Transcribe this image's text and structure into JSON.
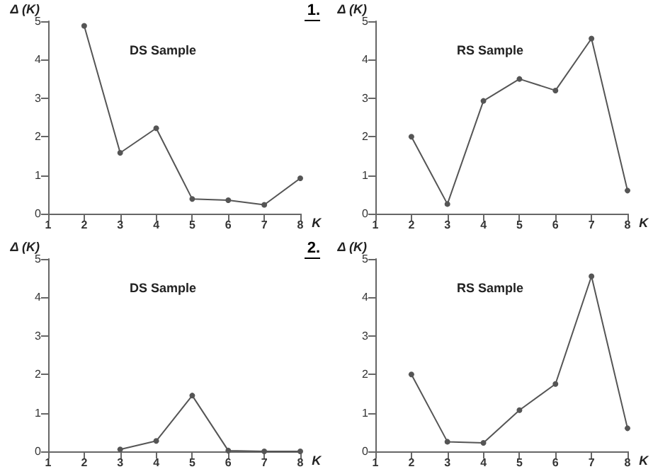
{
  "chart_data": [
    {
      "type": "line",
      "title": "DS Sample",
      "xlabel": "K",
      "ylabel": "Δ (K)",
      "annotations": [
        "1."
      ],
      "x": [
        2,
        3,
        4,
        5,
        6,
        7,
        8
      ],
      "values": [
        4.88,
        1.58,
        2.22,
        0.38,
        0.35,
        0.23,
        0.92
      ],
      "color": "#555555",
      "xlim": [
        1,
        8
      ],
      "xticks": [
        1,
        2,
        3,
        4,
        5,
        6,
        7,
        8
      ],
      "ylim": [
        0,
        5
      ],
      "yticks": [
        0,
        1,
        2,
        3,
        4,
        5
      ],
      "grid": false,
      "marker": "circle"
    },
    {
      "type": "line",
      "title": "RS Sample",
      "xlabel": "K",
      "ylabel": "Δ (K)",
      "x": [
        2,
        3,
        4,
        5,
        6,
        7,
        8
      ],
      "values": [
        2.0,
        0.25,
        2.93,
        3.5,
        3.2,
        4.55,
        0.6
      ],
      "color": "#555555",
      "xlim": [
        1,
        8
      ],
      "xticks": [
        1,
        2,
        3,
        4,
        5,
        6,
        7,
        8
      ],
      "ylim": [
        0,
        5
      ],
      "yticks": [
        0,
        1,
        2,
        3,
        4,
        5
      ],
      "grid": false,
      "marker": "circle"
    },
    {
      "type": "line",
      "title": "DS Sample",
      "xlabel": "K",
      "ylabel": "Δ (K)",
      "annotations": [
        "2."
      ],
      "x": [
        3,
        4,
        5,
        6,
        7,
        8
      ],
      "values": [
        0.05,
        0.27,
        1.45,
        0.02,
        0.0,
        0.0
      ],
      "color": "#555555",
      "xlim": [
        1,
        8
      ],
      "xticks": [
        1,
        2,
        3,
        4,
        5,
        6,
        7,
        8
      ],
      "ylim": [
        0,
        5
      ],
      "yticks": [
        0,
        1,
        2,
        3,
        4,
        5
      ],
      "grid": false,
      "marker": "circle"
    },
    {
      "type": "line",
      "title": "RS Sample",
      "xlabel": "K",
      "ylabel": "Δ (K)",
      "x": [
        2,
        3,
        4,
        5,
        6,
        7,
        8
      ],
      "values": [
        2.0,
        0.25,
        0.22,
        1.07,
        1.75,
        4.55,
        0.6
      ],
      "color": "#555555",
      "xlim": [
        1,
        8
      ],
      "xticks": [
        1,
        2,
        3,
        4,
        5,
        6,
        7,
        8
      ],
      "ylim": [
        0,
        5
      ],
      "yticks": [
        0,
        1,
        2,
        3,
        4,
        5
      ],
      "grid": false,
      "marker": "circle"
    }
  ]
}
